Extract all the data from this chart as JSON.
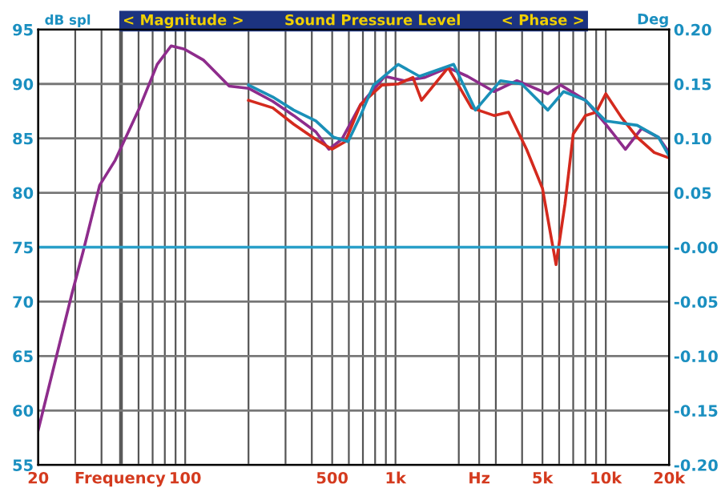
{
  "chart_data": {
    "type": "line",
    "title": "< Magnitude >        Sound Pressure Level        < Phase >",
    "ylabel": "dB spl",
    "y2label": "Deg",
    "log": "x",
    "xlim": [
      20,
      20000
    ],
    "xticks": [
      {
        "value": 20,
        "label": "20"
      },
      {
        "value": 49,
        "label": "Frequency"
      },
      {
        "value": 100,
        "label": "100"
      },
      {
        "value": 500,
        "label": "500"
      },
      {
        "value": 1000,
        "label": "1k"
      },
      {
        "value": 2500,
        "label": "Hz"
      },
      {
        "value": 5000,
        "label": "5k"
      },
      {
        "value": 10000,
        "label": "10k"
      },
      {
        "value": 20000,
        "label": "20k"
      }
    ],
    "ylim": [
      55,
      95
    ],
    "yticks": [
      55,
      60,
      65,
      70,
      75,
      80,
      85,
      90,
      95
    ],
    "y2lim": [
      -0.2,
      0.2
    ],
    "y2ticks": [
      {
        "value": -0.2,
        "label": "-0.20"
      },
      {
        "value": -0.15,
        "label": "-0.15"
      },
      {
        "value": -0.1,
        "label": "-0.10"
      },
      {
        "value": -0.05,
        "label": "-0.05"
      },
      {
        "value": 0,
        "label": "-0.00"
      },
      {
        "value": 0.05,
        "label": "0.05"
      },
      {
        "value": 0.1,
        "label": "0.10"
      },
      {
        "value": 0.15,
        "label": "0.15"
      },
      {
        "value": 0.2,
        "label": "0.20"
      }
    ],
    "ref_lines": [
      {
        "axis": "y2",
        "value": 0,
        "color": "#2a9fc9"
      }
    ],
    "grid": true,
    "legend": false,
    "series": [
      {
        "color": "#8e2c8c",
        "x": [
          20,
          28.9,
          32.7,
          39.2,
          46.5,
          60.6,
          73.6,
          85.7,
          99,
          122,
          162,
          200,
          261,
          328,
          418,
          482,
          555,
          682,
          889,
          1100,
          1380,
          1780,
          2200,
          2940,
          3780,
          5300,
          6100,
          8000,
          10000,
          12400,
          14800,
          17800,
          20000
        ],
        "values": [
          58.2,
          70.7,
          74.6,
          80.7,
          83,
          87.8,
          91.8,
          93.5,
          93.2,
          92.2,
          89.8,
          89.6,
          88.4,
          87.1,
          85.6,
          84,
          84.9,
          88.1,
          90.7,
          90.3,
          90.6,
          91.5,
          90.7,
          89.3,
          90.3,
          89.1,
          89.9,
          88.5,
          86.3,
          84,
          85.9,
          85.1,
          83.7
        ]
      },
      {
        "color": "#d42a1e",
        "x": [
          200,
          261,
          328,
          418,
          499,
          577,
          682,
          862,
          1030,
          1210,
          1330,
          1780,
          2300,
          2940,
          3450,
          4200,
          5000,
          5800,
          6400,
          7000,
          8000,
          9000,
          10000,
          11900,
          14100,
          17000,
          20000
        ],
        "values": [
          88.5,
          87.8,
          86.3,
          84.9,
          84,
          84.7,
          88.1,
          89.9,
          90,
          90.6,
          88.5,
          91.5,
          87.8,
          87.1,
          87.4,
          84,
          80.4,
          73.4,
          79,
          85.4,
          87.1,
          87.4,
          89.1,
          86.9,
          85.1,
          83.7,
          83.2
        ]
      },
      {
        "color": "#1a90b8",
        "x": [
          200,
          261,
          328,
          418,
          508,
          595,
          682,
          787,
          1030,
          1300,
          1890,
          2400,
          3160,
          3980,
          5300,
          6300,
          8000,
          10000,
          14100,
          17800,
          20000
        ],
        "values": [
          89.9,
          88.8,
          87.6,
          86.6,
          85.1,
          84.7,
          87.1,
          89.9,
          91.8,
          90.7,
          91.8,
          87.6,
          90.3,
          90,
          87.6,
          89.3,
          88.5,
          86.6,
          86.2,
          85.1,
          83.4
        ]
      }
    ]
  }
}
